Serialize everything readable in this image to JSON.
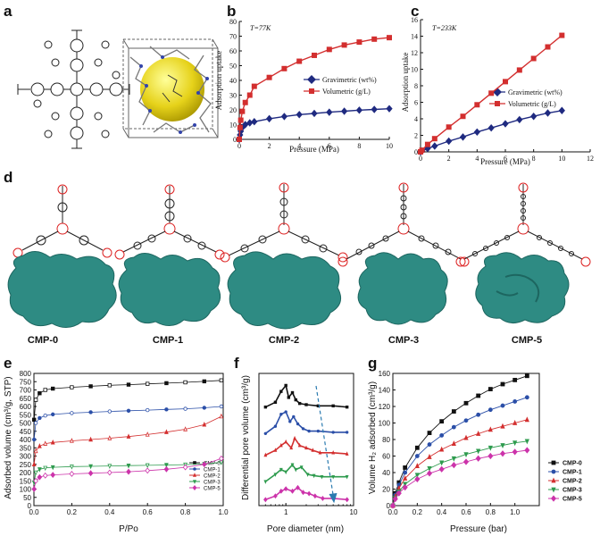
{
  "panel_labels": [
    "a",
    "b",
    "c",
    "d",
    "e",
    "f",
    "g"
  ],
  "cmp_labels": [
    "CMP-0",
    "CMP-1",
    "CMP-2",
    "CMP-3",
    "CMP-5"
  ],
  "chart_data": [
    {
      "id": "b",
      "type": "line",
      "annotation": "T=77K",
      "xlabel": "Pressure (MPa)",
      "ylabel": "Adsorption uptake",
      "xlim": [
        0,
        10
      ],
      "ylim": [
        0,
        80
      ],
      "xticks": [
        "0",
        "2",
        "4",
        "6",
        "8",
        "10"
      ],
      "yticks": [
        "0",
        "10",
        "20",
        "30",
        "40",
        "50",
        "60",
        "70",
        "80"
      ],
      "legend_position": "middle-right",
      "series": [
        {
          "name": "Gravimetric (wt%)",
          "color": "#1f2a80",
          "marker": "diamond",
          "x": [
            0,
            0.05,
            0.1,
            0.2,
            0.4,
            0.7,
            1,
            2,
            3,
            4,
            5,
            6,
            7,
            8,
            9,
            10
          ],
          "y": [
            0,
            3,
            5.5,
            8,
            10,
            11.2,
            12,
            14,
            15.5,
            16.8,
            17.6,
            18.4,
            19.1,
            19.8,
            20.3,
            20.8
          ]
        },
        {
          "name": "Volumetric (g/L)",
          "color": "#d32f2f",
          "marker": "square",
          "x": [
            0,
            0.05,
            0.1,
            0.2,
            0.4,
            0.7,
            1,
            2,
            3,
            4,
            5,
            6,
            7,
            8,
            9,
            10
          ],
          "y": [
            0,
            8,
            13,
            19,
            25,
            30,
            36,
            42,
            48,
            53,
            57,
            61,
            64,
            66,
            68,
            69
          ]
        }
      ]
    },
    {
      "id": "c",
      "type": "line",
      "annotation": "T=233K",
      "xlabel": "Pressure (MPa)",
      "ylabel": "Adsorption uptake",
      "xlim": [
        0,
        12
      ],
      "ylim": [
        0,
        16
      ],
      "xticks": [
        "0",
        "2",
        "4",
        "6",
        "8",
        "10",
        "12"
      ],
      "yticks": [
        "0",
        "2",
        "4",
        "6",
        "8",
        "10",
        "12",
        "14",
        "16"
      ],
      "legend_position": "middle-right",
      "series": [
        {
          "name": "Gravimetric (wt%)",
          "color": "#1f2a80",
          "marker": "diamond",
          "x": [
            0,
            0.1,
            0.5,
            1,
            2,
            3,
            4,
            5,
            6,
            7,
            8,
            9,
            10
          ],
          "y": [
            0,
            0.1,
            0.4,
            0.7,
            1.3,
            1.8,
            2.4,
            2.9,
            3.4,
            3.9,
            4.3,
            4.7,
            5.0
          ]
        },
        {
          "name": "Volumetric (g/L)",
          "color": "#d32f2f",
          "marker": "square",
          "x": [
            0,
            0.1,
            0.5,
            1,
            2,
            3,
            4,
            5,
            6,
            7,
            8,
            9,
            10
          ],
          "y": [
            0,
            0.2,
            0.9,
            1.6,
            3.0,
            4.3,
            5.7,
            7.1,
            8.5,
            9.9,
            11.3,
            12.7,
            14.1
          ]
        }
      ]
    },
    {
      "id": "e",
      "type": "line",
      "xlabel": "P/Po",
      "ylabel": "Adsorbed volume (cm³/g, STP)",
      "xlim": [
        0,
        1
      ],
      "ylim": [
        0,
        800
      ],
      "xticks": [
        "0.0",
        "0.2",
        "0.4",
        "0.6",
        "0.8",
        "1.0"
      ],
      "yticks": [
        "0",
        "50",
        "100",
        "150",
        "200",
        "250",
        "300",
        "350",
        "400",
        "450",
        "500",
        "550",
        "600",
        "650",
        "700",
        "750",
        "800"
      ],
      "legend_position": "bottom-right",
      "series": [
        {
          "name": "CMP-0",
          "color": "#111111",
          "marker": "square",
          "x": [
            0.001,
            0.01,
            0.03,
            0.06,
            0.1,
            0.2,
            0.3,
            0.4,
            0.5,
            0.6,
            0.7,
            0.8,
            0.9,
            0.99
          ],
          "y": [
            520,
            640,
            680,
            700,
            708,
            716,
            722,
            728,
            732,
            737,
            741,
            746,
            752,
            758
          ]
        },
        {
          "name": "CMP-1",
          "color": "#2b4fa8",
          "marker": "circle",
          "x": [
            0.001,
            0.01,
            0.03,
            0.06,
            0.1,
            0.2,
            0.3,
            0.4,
            0.5,
            0.6,
            0.7,
            0.8,
            0.9,
            0.99
          ],
          "y": [
            400,
            500,
            530,
            545,
            552,
            560,
            565,
            570,
            574,
            578,
            582,
            586,
            592,
            600
          ]
        },
        {
          "name": "CMP-2",
          "color": "#d32f2f",
          "marker": "triangle",
          "x": [
            0.001,
            0.01,
            0.03,
            0.06,
            0.1,
            0.2,
            0.3,
            0.4,
            0.5,
            0.6,
            0.7,
            0.8,
            0.9,
            0.99
          ],
          "y": [
            250,
            330,
            360,
            375,
            382,
            392,
            400,
            408,
            418,
            430,
            445,
            462,
            490,
            540
          ]
        },
        {
          "name": "CMP-3",
          "color": "#2e9b4e",
          "marker": "triangle-down",
          "x": [
            0.001,
            0.01,
            0.03,
            0.06,
            0.1,
            0.2,
            0.3,
            0.4,
            0.5,
            0.6,
            0.7,
            0.8,
            0.9,
            0.99
          ],
          "y": [
            140,
            200,
            220,
            228,
            232,
            236,
            238,
            240,
            242,
            244,
            246,
            248,
            252,
            262
          ]
        },
        {
          "name": "CMP-5",
          "color": "#cc33aa",
          "marker": "diamond",
          "x": [
            0.001,
            0.01,
            0.03,
            0.06,
            0.1,
            0.2,
            0.3,
            0.4,
            0.5,
            0.6,
            0.7,
            0.8,
            0.9,
            0.99
          ],
          "y": [
            100,
            150,
            172,
            182,
            186,
            192,
            196,
            200,
            205,
            212,
            220,
            232,
            250,
            285
          ]
        }
      ]
    },
    {
      "id": "f",
      "type": "line",
      "xlabel": "Pore diameter (nm)",
      "ylabel": "Differential pore volume (cm³/g)",
      "xscale": "log",
      "xlim": [
        0.4,
        10
      ],
      "xticks": [
        "1",
        "10"
      ],
      "series": [
        {
          "name": "CMP-0",
          "color": "#111111",
          "x": [
            0.5,
            0.7,
            0.85,
            1.0,
            1.1,
            1.25,
            1.4,
            1.6,
            2,
            3,
            5,
            8
          ],
          "y": [
            0.82,
            0.86,
            0.95,
            1.0,
            0.9,
            0.94,
            0.88,
            0.85,
            0.84,
            0.83,
            0.83,
            0.82
          ]
        },
        {
          "name": "CMP-1",
          "color": "#2b4fa8",
          "x": [
            0.5,
            0.7,
            0.85,
            1.0,
            1.15,
            1.3,
            1.5,
            1.8,
            2.2,
            3,
            5,
            8
          ],
          "y": [
            0.6,
            0.66,
            0.76,
            0.78,
            0.7,
            0.74,
            0.68,
            0.64,
            0.62,
            0.62,
            0.61,
            0.61
          ]
        },
        {
          "name": "CMP-2",
          "color": "#d32f2f",
          "x": [
            0.5,
            0.7,
            0.85,
            1.0,
            1.2,
            1.35,
            1.6,
            2.0,
            2.5,
            3.2,
            5,
            8
          ],
          "y": [
            0.42,
            0.46,
            0.5,
            0.53,
            0.48,
            0.56,
            0.5,
            0.48,
            0.46,
            0.44,
            0.44,
            0.43
          ]
        },
        {
          "name": "CMP-3",
          "color": "#2e9b4e",
          "x": [
            0.5,
            0.7,
            0.85,
            1.0,
            1.25,
            1.4,
            1.7,
            2.1,
            2.6,
            3.4,
            5,
            8
          ],
          "y": [
            0.2,
            0.26,
            0.3,
            0.28,
            0.34,
            0.3,
            0.32,
            0.26,
            0.25,
            0.24,
            0.24,
            0.24
          ]
        },
        {
          "name": "CMP-5",
          "color": "#cc33aa",
          "x": [
            0.5,
            0.7,
            0.85,
            1.0,
            1.25,
            1.5,
            1.8,
            2.2,
            2.7,
            3.5,
            5,
            8
          ],
          "y": [
            0.05,
            0.08,
            0.12,
            0.14,
            0.12,
            0.15,
            0.11,
            0.1,
            0.08,
            0.06,
            0.06,
            0.05
          ]
        }
      ]
    },
    {
      "id": "g",
      "type": "line",
      "xlabel": "Pressure (bar)",
      "ylabel": "Volume H₂ adsorbed (cm³/g)",
      "xlim": [
        0,
        1.2
      ],
      "ylim": [
        0,
        160
      ],
      "xticks": [
        "0.0",
        "0.2",
        "0.4",
        "0.6",
        "0.8",
        "1.0"
      ],
      "yticks": [
        "0",
        "20",
        "40",
        "60",
        "80",
        "100",
        "120",
        "140",
        "160"
      ],
      "legend_position": "right",
      "series": [
        {
          "name": "CMP-0",
          "color": "#111111",
          "marker": "square",
          "x": [
            0,
            0.02,
            0.05,
            0.1,
            0.2,
            0.3,
            0.4,
            0.5,
            0.6,
            0.7,
            0.8,
            0.9,
            1.0,
            1.1
          ],
          "y": [
            0,
            15,
            28,
            46,
            70,
            88,
            102,
            114,
            124,
            133,
            141,
            147,
            152,
            157
          ]
        },
        {
          "name": "CMP-1",
          "color": "#2b4fa8",
          "marker": "circle",
          "x": [
            0,
            0.02,
            0.05,
            0.1,
            0.2,
            0.3,
            0.4,
            0.5,
            0.6,
            0.7,
            0.8,
            0.9,
            1.0,
            1.1
          ],
          "y": [
            0,
            13,
            25,
            40,
            60,
            74,
            85,
            95,
            103,
            110,
            116,
            121,
            126,
            131
          ]
        },
        {
          "name": "CMP-2",
          "color": "#d32f2f",
          "marker": "triangle",
          "x": [
            0,
            0.02,
            0.05,
            0.1,
            0.2,
            0.3,
            0.4,
            0.5,
            0.6,
            0.7,
            0.8,
            0.9,
            1.0,
            1.1
          ],
          "y": [
            0,
            11,
            21,
            33,
            48,
            59,
            68,
            75,
            82,
            87,
            92,
            96,
            100,
            104
          ]
        },
        {
          "name": "CMP-3",
          "color": "#2e9b4e",
          "marker": "triangle-down",
          "x": [
            0,
            0.02,
            0.05,
            0.1,
            0.2,
            0.3,
            0.4,
            0.5,
            0.6,
            0.7,
            0.8,
            0.9,
            1.0,
            1.1
          ],
          "y": [
            0,
            9,
            17,
            26,
            37,
            45,
            52,
            57,
            62,
            66,
            70,
            73,
            76,
            78
          ]
        },
        {
          "name": "CMP-5",
          "color": "#cc33aa",
          "marker": "diamond",
          "x": [
            0,
            0.02,
            0.05,
            0.1,
            0.2,
            0.3,
            0.4,
            0.5,
            0.6,
            0.7,
            0.8,
            0.9,
            1.0,
            1.1
          ],
          "y": [
            0,
            8,
            15,
            22,
            32,
            39,
            44,
            49,
            53,
            57,
            60,
            63,
            65,
            67
          ]
        }
      ]
    }
  ]
}
